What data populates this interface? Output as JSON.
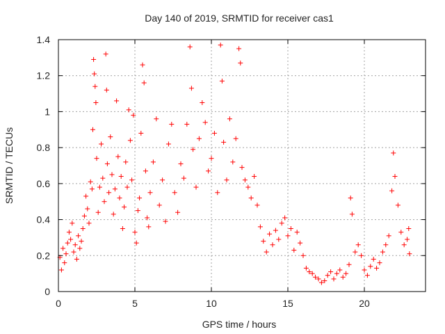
{
  "chart_data": {
    "type": "scatter",
    "title": "Day 140 of 2019, SRMTID for receiver cas1",
    "xlabel": "GPS time / hours",
    "ylabel": "SRMTID / TECUs",
    "xlim": [
      0,
      24
    ],
    "ylim": [
      0,
      1.4
    ],
    "xticks": [
      "0",
      "5",
      "10",
      "15",
      "20"
    ],
    "yticks": [
      "0",
      "0.2",
      "0.4",
      "0.6",
      "0.8",
      "1",
      "1.2",
      "1.4"
    ],
    "grid": true,
    "marker": "plus",
    "color": "#ff0000",
    "series": [
      {
        "name": "cas1",
        "points": [
          [
            0.1,
            0.19
          ],
          [
            0.2,
            0.12
          ],
          [
            0.3,
            0.24
          ],
          [
            0.4,
            0.16
          ],
          [
            0.5,
            0.21
          ],
          [
            0.6,
            0.27
          ],
          [
            0.7,
            0.33
          ],
          [
            0.8,
            0.29
          ],
          [
            0.9,
            0.38
          ],
          [
            1.0,
            0.22
          ],
          [
            1.1,
            0.26
          ],
          [
            1.2,
            0.18
          ],
          [
            1.3,
            0.31
          ],
          [
            1.4,
            0.24
          ],
          [
            1.5,
            0.28
          ],
          [
            1.6,
            0.35
          ],
          [
            1.7,
            0.42
          ],
          [
            1.8,
            0.53
          ],
          [
            1.9,
            0.46
          ],
          [
            2.0,
            0.38
          ],
          [
            2.1,
            0.61
          ],
          [
            2.2,
            0.57
          ],
          [
            2.25,
            0.9
          ],
          [
            2.3,
            1.29
          ],
          [
            2.35,
            1.21
          ],
          [
            2.4,
            1.14
          ],
          [
            2.45,
            1.05
          ],
          [
            2.5,
            0.74
          ],
          [
            2.6,
            0.44
          ],
          [
            2.7,
            0.58
          ],
          [
            2.8,
            0.82
          ],
          [
            2.9,
            0.63
          ],
          [
            3.0,
            0.5
          ],
          [
            3.1,
            1.32
          ],
          [
            3.15,
            1.12
          ],
          [
            3.2,
            0.71
          ],
          [
            3.3,
            0.55
          ],
          [
            3.4,
            0.86
          ],
          [
            3.5,
            0.65
          ],
          [
            3.6,
            0.43
          ],
          [
            3.7,
            0.57
          ],
          [
            3.8,
            1.06
          ],
          [
            3.9,
            0.75
          ],
          [
            4.0,
            0.52
          ],
          [
            4.1,
            0.64
          ],
          [
            4.2,
            0.35
          ],
          [
            4.3,
            0.47
          ],
          [
            4.4,
            0.72
          ],
          [
            4.5,
            0.58
          ],
          [
            4.6,
            1.01
          ],
          [
            4.7,
            0.84
          ],
          [
            4.8,
            0.62
          ],
          [
            4.9,
            0.98
          ],
          [
            5.0,
            0.33
          ],
          [
            5.1,
            0.27
          ],
          [
            5.2,
            0.45
          ],
          [
            5.3,
            0.52
          ],
          [
            5.4,
            0.88
          ],
          [
            5.5,
            1.26
          ],
          [
            5.6,
            1.16
          ],
          [
            5.7,
            0.67
          ],
          [
            5.8,
            0.41
          ],
          [
            5.9,
            0.36
          ],
          [
            6.0,
            0.55
          ],
          [
            6.2,
            0.72
          ],
          [
            6.4,
            0.96
          ],
          [
            6.6,
            0.48
          ],
          [
            6.8,
            0.62
          ],
          [
            7.0,
            0.39
          ],
          [
            7.2,
            0.82
          ],
          [
            7.4,
            0.93
          ],
          [
            7.6,
            0.55
          ],
          [
            7.8,
            0.44
          ],
          [
            8.0,
            0.71
          ],
          [
            8.2,
            0.63
          ],
          [
            8.4,
            0.93
          ],
          [
            8.6,
            1.36
          ],
          [
            8.7,
            1.13
          ],
          [
            8.8,
            0.79
          ],
          [
            9.0,
            0.58
          ],
          [
            9.2,
            0.85
          ],
          [
            9.4,
            1.05
          ],
          [
            9.6,
            0.94
          ],
          [
            9.8,
            0.67
          ],
          [
            10.0,
            0.74
          ],
          [
            10.2,
            0.88
          ],
          [
            10.4,
            0.55
          ],
          [
            10.6,
            1.37
          ],
          [
            10.7,
            1.17
          ],
          [
            10.8,
            0.83
          ],
          [
            11.0,
            0.62
          ],
          [
            11.2,
            0.96
          ],
          [
            11.4,
            0.72
          ],
          [
            11.6,
            0.85
          ],
          [
            11.8,
            1.35
          ],
          [
            11.9,
            1.27
          ],
          [
            12.0,
            0.69
          ],
          [
            12.2,
            0.62
          ],
          [
            12.4,
            0.58
          ],
          [
            12.6,
            0.52
          ],
          [
            12.8,
            0.64
          ],
          [
            13.0,
            0.48
          ],
          [
            13.2,
            0.36
          ],
          [
            13.4,
            0.28
          ],
          [
            13.6,
            0.22
          ],
          [
            13.8,
            0.32
          ],
          [
            14.0,
            0.26
          ],
          [
            14.2,
            0.34
          ],
          [
            14.4,
            0.29
          ],
          [
            14.6,
            0.38
          ],
          [
            14.8,
            0.41
          ],
          [
            15.0,
            0.31
          ],
          [
            15.2,
            0.35
          ],
          [
            15.4,
            0.23
          ],
          [
            15.6,
            0.33
          ],
          [
            15.8,
            0.27
          ],
          [
            16.0,
            0.2
          ],
          [
            16.2,
            0.13
          ],
          [
            16.4,
            0.11
          ],
          [
            16.6,
            0.1
          ],
          [
            16.8,
            0.08
          ],
          [
            17.0,
            0.07
          ],
          [
            17.2,
            0.05
          ],
          [
            17.4,
            0.06
          ],
          [
            17.6,
            0.09
          ],
          [
            17.8,
            0.11
          ],
          [
            18.0,
            0.07
          ],
          [
            18.2,
            0.1
          ],
          [
            18.4,
            0.12
          ],
          [
            18.6,
            0.08
          ],
          [
            18.8,
            0.1
          ],
          [
            19.0,
            0.15
          ],
          [
            19.1,
            0.52
          ],
          [
            19.2,
            0.43
          ],
          [
            19.4,
            0.22
          ],
          [
            19.6,
            0.26
          ],
          [
            19.8,
            0.2
          ],
          [
            20.0,
            0.12
          ],
          [
            20.2,
            0.09
          ],
          [
            20.4,
            0.14
          ],
          [
            20.6,
            0.18
          ],
          [
            20.8,
            0.13
          ],
          [
            21.0,
            0.16
          ],
          [
            21.2,
            0.22
          ],
          [
            21.4,
            0.26
          ],
          [
            21.6,
            0.31
          ],
          [
            21.8,
            0.56
          ],
          [
            21.9,
            0.77
          ],
          [
            22.0,
            0.64
          ],
          [
            22.2,
            0.48
          ],
          [
            22.4,
            0.33
          ],
          [
            22.6,
            0.26
          ],
          [
            22.8,
            0.29
          ],
          [
            22.9,
            0.35
          ],
          [
            22.95,
            0.21
          ]
        ]
      }
    ]
  }
}
